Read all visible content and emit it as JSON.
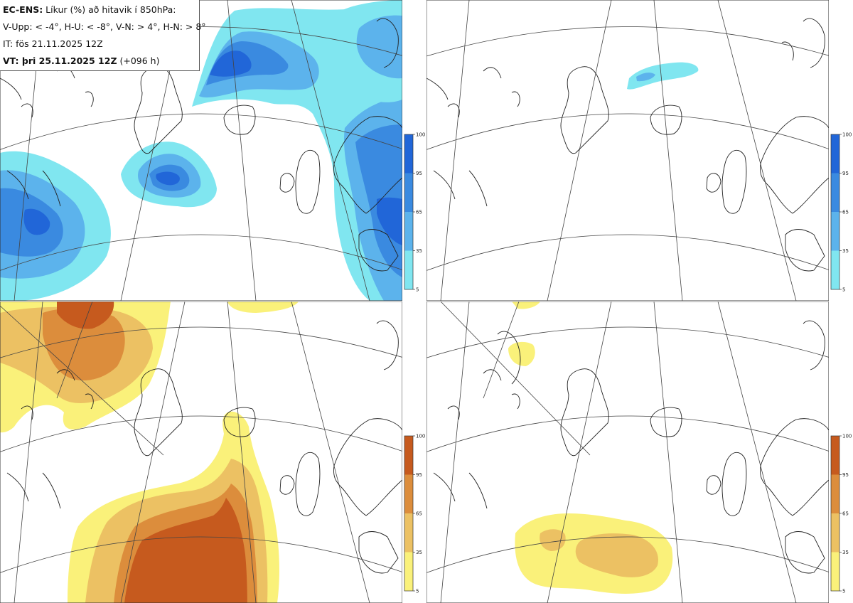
{
  "header": {
    "line1_bold": "EC-ENS:",
    "line1_rest": " Líkur (%) að hitavik í 850hPa:",
    "line2": "V-Upp: < -4°, H-U: < -8°, V-N: > 4°, H-N: > 8°",
    "line3": "IT: fös 21.11.2025 12Z",
    "line4_bold": "VT: þri 25.11.2025 12Z",
    "line4_rest": " (+096 h)"
  },
  "colorbar": {
    "ticks": [
      "100",
      "95",
      "65",
      "35",
      "5"
    ],
    "cold_colors": [
      "#2166d8",
      "#3a8ae0",
      "#5cb3ec",
      "#80e6f0",
      "#aef7f7"
    ],
    "warm_colors": [
      "#c65a1e",
      "#dc8d3c",
      "#ecc163",
      "#faf17a",
      "#ffff99"
    ]
  },
  "panels": [
    {
      "id": "V-Upp",
      "scheme": "cold"
    },
    {
      "id": "H-U",
      "scheme": "cold"
    },
    {
      "id": "V-N",
      "scheme": "warm"
    },
    {
      "id": "H-N",
      "scheme": "warm"
    }
  ]
}
